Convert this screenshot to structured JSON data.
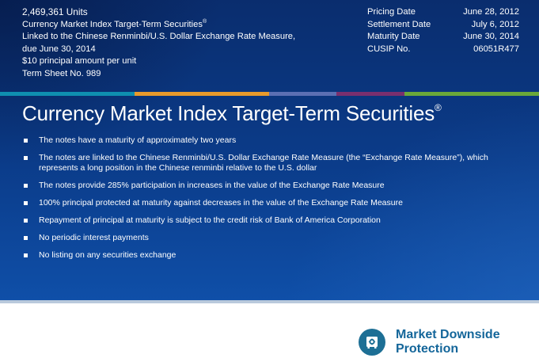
{
  "header": {
    "units": "2,469,361 Units",
    "lines": [
      "Currency Market Index Target-Term Securities",
      "Linked to the Chinese Renminbi/U.S. Dollar Exchange Rate Measure,",
      "due June 30, 2014",
      "$10 principal amount per unit",
      "Term Sheet No. 989"
    ],
    "registered_mark": "®",
    "details": [
      {
        "label": "Pricing Date",
        "value": "June 28, 2012"
      },
      {
        "label": "Settlement Date",
        "value": "July 6, 2012"
      },
      {
        "label": "Maturity Date",
        "value": "June 30, 2014"
      },
      {
        "label": "CUSIP No.",
        "value": "06051R477"
      }
    ]
  },
  "colors": {
    "strip": [
      "#0f8fb0",
      "#e89a2c",
      "#5b6fb3",
      "#7a2f6e",
      "#6aa83a"
    ],
    "banner": "#0b3c8a",
    "badge": "#14669a"
  },
  "main": {
    "title": "Currency Market Index Target-Term Securities",
    "title_mark": "®",
    "bullets": [
      "The notes have a maturity of approximately two years",
      "The notes are linked to the Chinese Renminbi/U.S. Dollar Exchange Rate Measure (the “Exchange Rate Measure”), which represents a long position in the Chinese renminbi relative to the U.S. dollar",
      "The notes provide 285% participation in increases in the value of the Exchange Rate Measure",
      "100% principal protected at maturity against decreases in the value of the Exchange Rate Measure",
      "Repayment of principal at maturity is subject to the credit risk of Bank of America Corporation",
      "No periodic interest payments",
      "No listing on any securities exchange"
    ]
  },
  "badge": {
    "icon": "safe-vault-icon",
    "line1": "Market Downside",
    "line2": "Protection"
  }
}
